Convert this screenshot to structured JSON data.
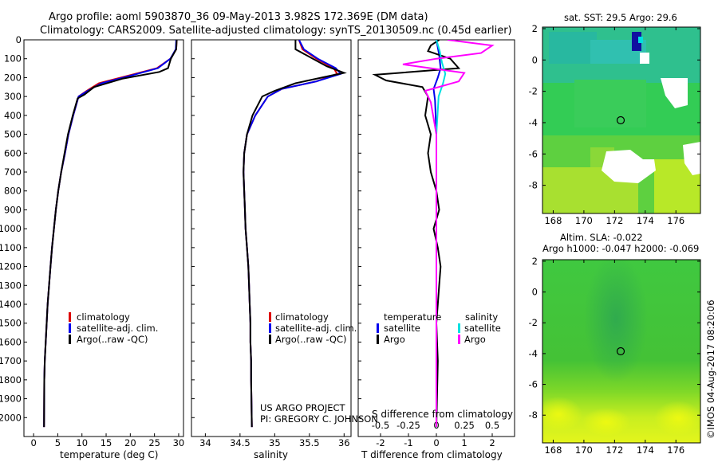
{
  "header": {
    "line1": "Argo profile: aoml 5903870_36 09-May-2013 3.982S 172.369E (DM data)",
    "line2": "Climatology: CARS2009. Satellite-adjusted climatology: synTS_20130509.nc (0.45d earlier)"
  },
  "colors": {
    "clim": "#dd0000",
    "sat": "#0000ee",
    "argo": "#000000",
    "sat_s": "#00e0e0",
    "argo_s": "#ff00ff"
  },
  "chart_data": [
    {
      "type": "line",
      "name": "temperature-profile",
      "xlabel": "temperature (deg C)",
      "xlim": [
        -2,
        31
      ],
      "ylim": [
        0,
        2100
      ],
      "y_inverted": true,
      "xticks": [
        0,
        5,
        10,
        15,
        20,
        25,
        30
      ],
      "yticks": [
        0,
        100,
        200,
        300,
        400,
        500,
        600,
        700,
        800,
        900,
        1000,
        1100,
        1200,
        1300,
        1400,
        1500,
        1600,
        1700,
        1800,
        1900,
        2000
      ],
      "series": [
        {
          "name": "climatology",
          "color": "#dd0000",
          "x": [
            29.6,
            29.5,
            28.3,
            25.5,
            19.5,
            13.5,
            11,
            9.3,
            8.2,
            7.2,
            6.5,
            5.7,
            5.1,
            4.6,
            4.2,
            3.8,
            3.5,
            3.2,
            2.9,
            2.7,
            2.5,
            2.3,
            2.2,
            2.15
          ],
          "y": [
            0,
            50,
            100,
            150,
            190,
            230,
            270,
            300,
            400,
            500,
            600,
            700,
            800,
            900,
            1000,
            1100,
            1200,
            1300,
            1400,
            1500,
            1600,
            1700,
            1800,
            2050
          ]
        },
        {
          "name": "satellite-adj. clim.",
          "color": "#0000ee",
          "x": [
            29.5,
            29.4,
            28.3,
            25.7,
            20,
            14,
            11.2,
            9.3,
            8.2,
            7.2,
            6.5,
            5.7,
            5.1,
            4.6,
            4.2,
            3.8,
            3.5,
            3.2,
            2.9,
            2.7,
            2.5,
            2.3,
            2.2,
            2.15
          ],
          "y": [
            0,
            50,
            100,
            150,
            190,
            230,
            270,
            300,
            400,
            500,
            600,
            700,
            800,
            900,
            1000,
            1100,
            1200,
            1300,
            1400,
            1500,
            1600,
            1700,
            1800,
            2050
          ]
        },
        {
          "name": "Argo(..raw -QC)",
          "color": "#000000",
          "x": [
            29.6,
            29.5,
            28.4,
            27.8,
            26,
            18.5,
            12.5,
            10.5,
            9.1,
            8.1,
            7.1,
            6.4,
            5.7,
            5.1,
            4.6,
            4.2,
            3.8,
            3.5,
            3.2,
            2.9,
            2.7,
            2.5,
            2.3,
            2.2,
            2.15
          ],
          "y": [
            0,
            50,
            100,
            150,
            170,
            205,
            250,
            290,
            310,
            400,
            500,
            600,
            700,
            800,
            900,
            1000,
            1100,
            1200,
            1300,
            1400,
            1500,
            1600,
            1700,
            1800,
            2050
          ]
        }
      ],
      "legend": [
        "climatology",
        "satellite-adj. clim.",
        "Argo(..raw -QC)"
      ]
    },
    {
      "type": "line",
      "name": "salinity-profile",
      "xlabel": "salinity",
      "xlim": [
        33.8,
        36.1
      ],
      "ylim": [
        0,
        2100
      ],
      "y_inverted": true,
      "xticks": [
        34,
        34.5,
        35,
        35.5,
        36
      ],
      "series": [
        {
          "name": "climatology",
          "color": "#dd0000",
          "x": [
            35.35,
            35.4,
            35.6,
            35.85,
            35.9,
            35.6,
            35.1,
            34.9,
            34.72,
            34.6,
            34.56,
            34.55,
            34.56,
            34.57,
            34.58,
            34.6,
            34.62,
            34.63,
            34.64,
            34.65,
            34.65,
            34.66,
            34.66,
            34.67
          ],
          "y": [
            0,
            50,
            100,
            150,
            180,
            220,
            260,
            300,
            400,
            500,
            600,
            700,
            800,
            900,
            1000,
            1100,
            1200,
            1300,
            1400,
            1500,
            1600,
            1700,
            1800,
            2050
          ]
        },
        {
          "name": "satellite-adj. clim.",
          "color": "#0000ee",
          "x": [
            35.35,
            35.42,
            35.62,
            35.88,
            35.95,
            35.6,
            35.1,
            34.9,
            34.72,
            34.6,
            34.56,
            34.55,
            34.56,
            34.57,
            34.58,
            34.6,
            34.62,
            34.63,
            34.64,
            34.65,
            34.65,
            34.66,
            34.66,
            34.67
          ],
          "y": [
            0,
            50,
            100,
            150,
            180,
            220,
            260,
            300,
            400,
            500,
            600,
            700,
            800,
            900,
            1000,
            1100,
            1200,
            1300,
            1400,
            1500,
            1600,
            1700,
            1800,
            2050
          ]
        },
        {
          "name": "Argo(..raw -QC)",
          "color": "#000000",
          "x": [
            35.3,
            35.3,
            35.55,
            35.75,
            36.0,
            35.8,
            35.3,
            35.0,
            34.82,
            34.68,
            34.6,
            34.56,
            34.55,
            34.56,
            34.57,
            34.58,
            34.6,
            34.62,
            34.63,
            34.64,
            34.65,
            34.65,
            34.66,
            34.66,
            34.67
          ],
          "y": [
            0,
            50,
            100,
            140,
            175,
            190,
            230,
            270,
            300,
            400,
            500,
            600,
            700,
            800,
            900,
            1000,
            1100,
            1200,
            1300,
            1400,
            1500,
            1600,
            1700,
            1800,
            2050
          ]
        }
      ],
      "legend": [
        "climatology",
        "satellite-adj. clim.",
        "Argo(..raw -QC)"
      ]
    },
    {
      "type": "line",
      "name": "difference-profile",
      "xlabel": "T difference from climatology",
      "xlabel_top": "S difference from climatology",
      "xlim": [
        -2.8,
        2.8
      ],
      "ylim": [
        0,
        2100
      ],
      "y_inverted": true,
      "xticks_T": [
        -2,
        -1,
        0,
        1,
        2
      ],
      "xticks_S": [
        -0.5,
        -0.25,
        0,
        0.25,
        0.5
      ],
      "series": [
        {
          "name": "temperature satellite",
          "color": "#0000ee",
          "x": [
            0,
            0.1,
            0.15,
            0.05,
            -0.1,
            -0.05,
            0,
            0,
            0,
            0,
            0
          ],
          "y": [
            0,
            80,
            150,
            200,
            260,
            320,
            500,
            900,
            1300,
            1700,
            2050
          ]
        },
        {
          "name": "temperature Argo",
          "color": "#000000",
          "x": [
            0.1,
            -0.2,
            -0.3,
            0.5,
            0.8,
            -2.2,
            -1.8,
            -0.5,
            -0.3,
            -0.4,
            -0.2,
            -0.3,
            -0.2,
            0,
            0.1,
            -0.1,
            0.05,
            0.15,
            0.1,
            0.05,
            0,
            0.05,
            0
          ],
          "y": [
            0,
            30,
            60,
            100,
            150,
            185,
            215,
            250,
            300,
            400,
            500,
            600,
            700,
            800,
            900,
            1000,
            1100,
            1200,
            1300,
            1400,
            1500,
            1700,
            2050
          ]
        },
        {
          "name": "salinity satellite",
          "color": "#00e0e0",
          "x": [
            0,
            0.03,
            0.05,
            0.08,
            0.06,
            0.02,
            0,
            0,
            0,
            0
          ],
          "y": [
            0,
            60,
            120,
            180,
            230,
            300,
            500,
            1000,
            1500,
            2050
          ]
        },
        {
          "name": "salinity Argo",
          "color": "#ff00ff",
          "x": [
            0.1,
            0.5,
            0.4,
            0,
            -0.3,
            0.25,
            0.2,
            -0.1,
            -0.05,
            0,
            0,
            0
          ],
          "y": [
            0,
            30,
            70,
            100,
            130,
            175,
            220,
            270,
            330,
            500,
            1000,
            2050
          ]
        }
      ],
      "legend_T_title": "temperature",
      "legend_S_title": "salinity",
      "legend_T": [
        "satellite",
        "Argo"
      ],
      "legend_S": [
        "satellite",
        "Argo"
      ]
    },
    {
      "type": "heatmap",
      "name": "sst-map",
      "title": "sat. SST: 29.5 Argo: 29.6",
      "xlim": [
        167.3,
        177.6
      ],
      "ylim": [
        -9.8,
        2.1
      ],
      "xticks": [
        168,
        170,
        172,
        174,
        176
      ],
      "yticks": [
        2,
        0,
        -2,
        -4,
        -6,
        -8
      ],
      "marker": {
        "lon": 172.369,
        "lat": -3.982
      }
    },
    {
      "type": "heatmap",
      "name": "sla-map",
      "title": "Altim. SLA: -0.022",
      "subtitle": "Argo h1000: -0.047 h2000: -0.069",
      "xlim": [
        167.3,
        177.6
      ],
      "ylim": [
        -9.8,
        2.1
      ],
      "xticks": [
        168,
        170,
        172,
        174,
        176
      ],
      "yticks": [
        2,
        0,
        -2,
        -4,
        -6,
        -8
      ],
      "marker": {
        "lon": 172.369,
        "lat": -3.982
      }
    }
  ],
  "annotations": {
    "project": "US ARGO PROJECT",
    "pi": "PI: GREGORY C. JOHNSON",
    "watermark": "©IMOS 04-Aug-2017 08:20:06"
  }
}
